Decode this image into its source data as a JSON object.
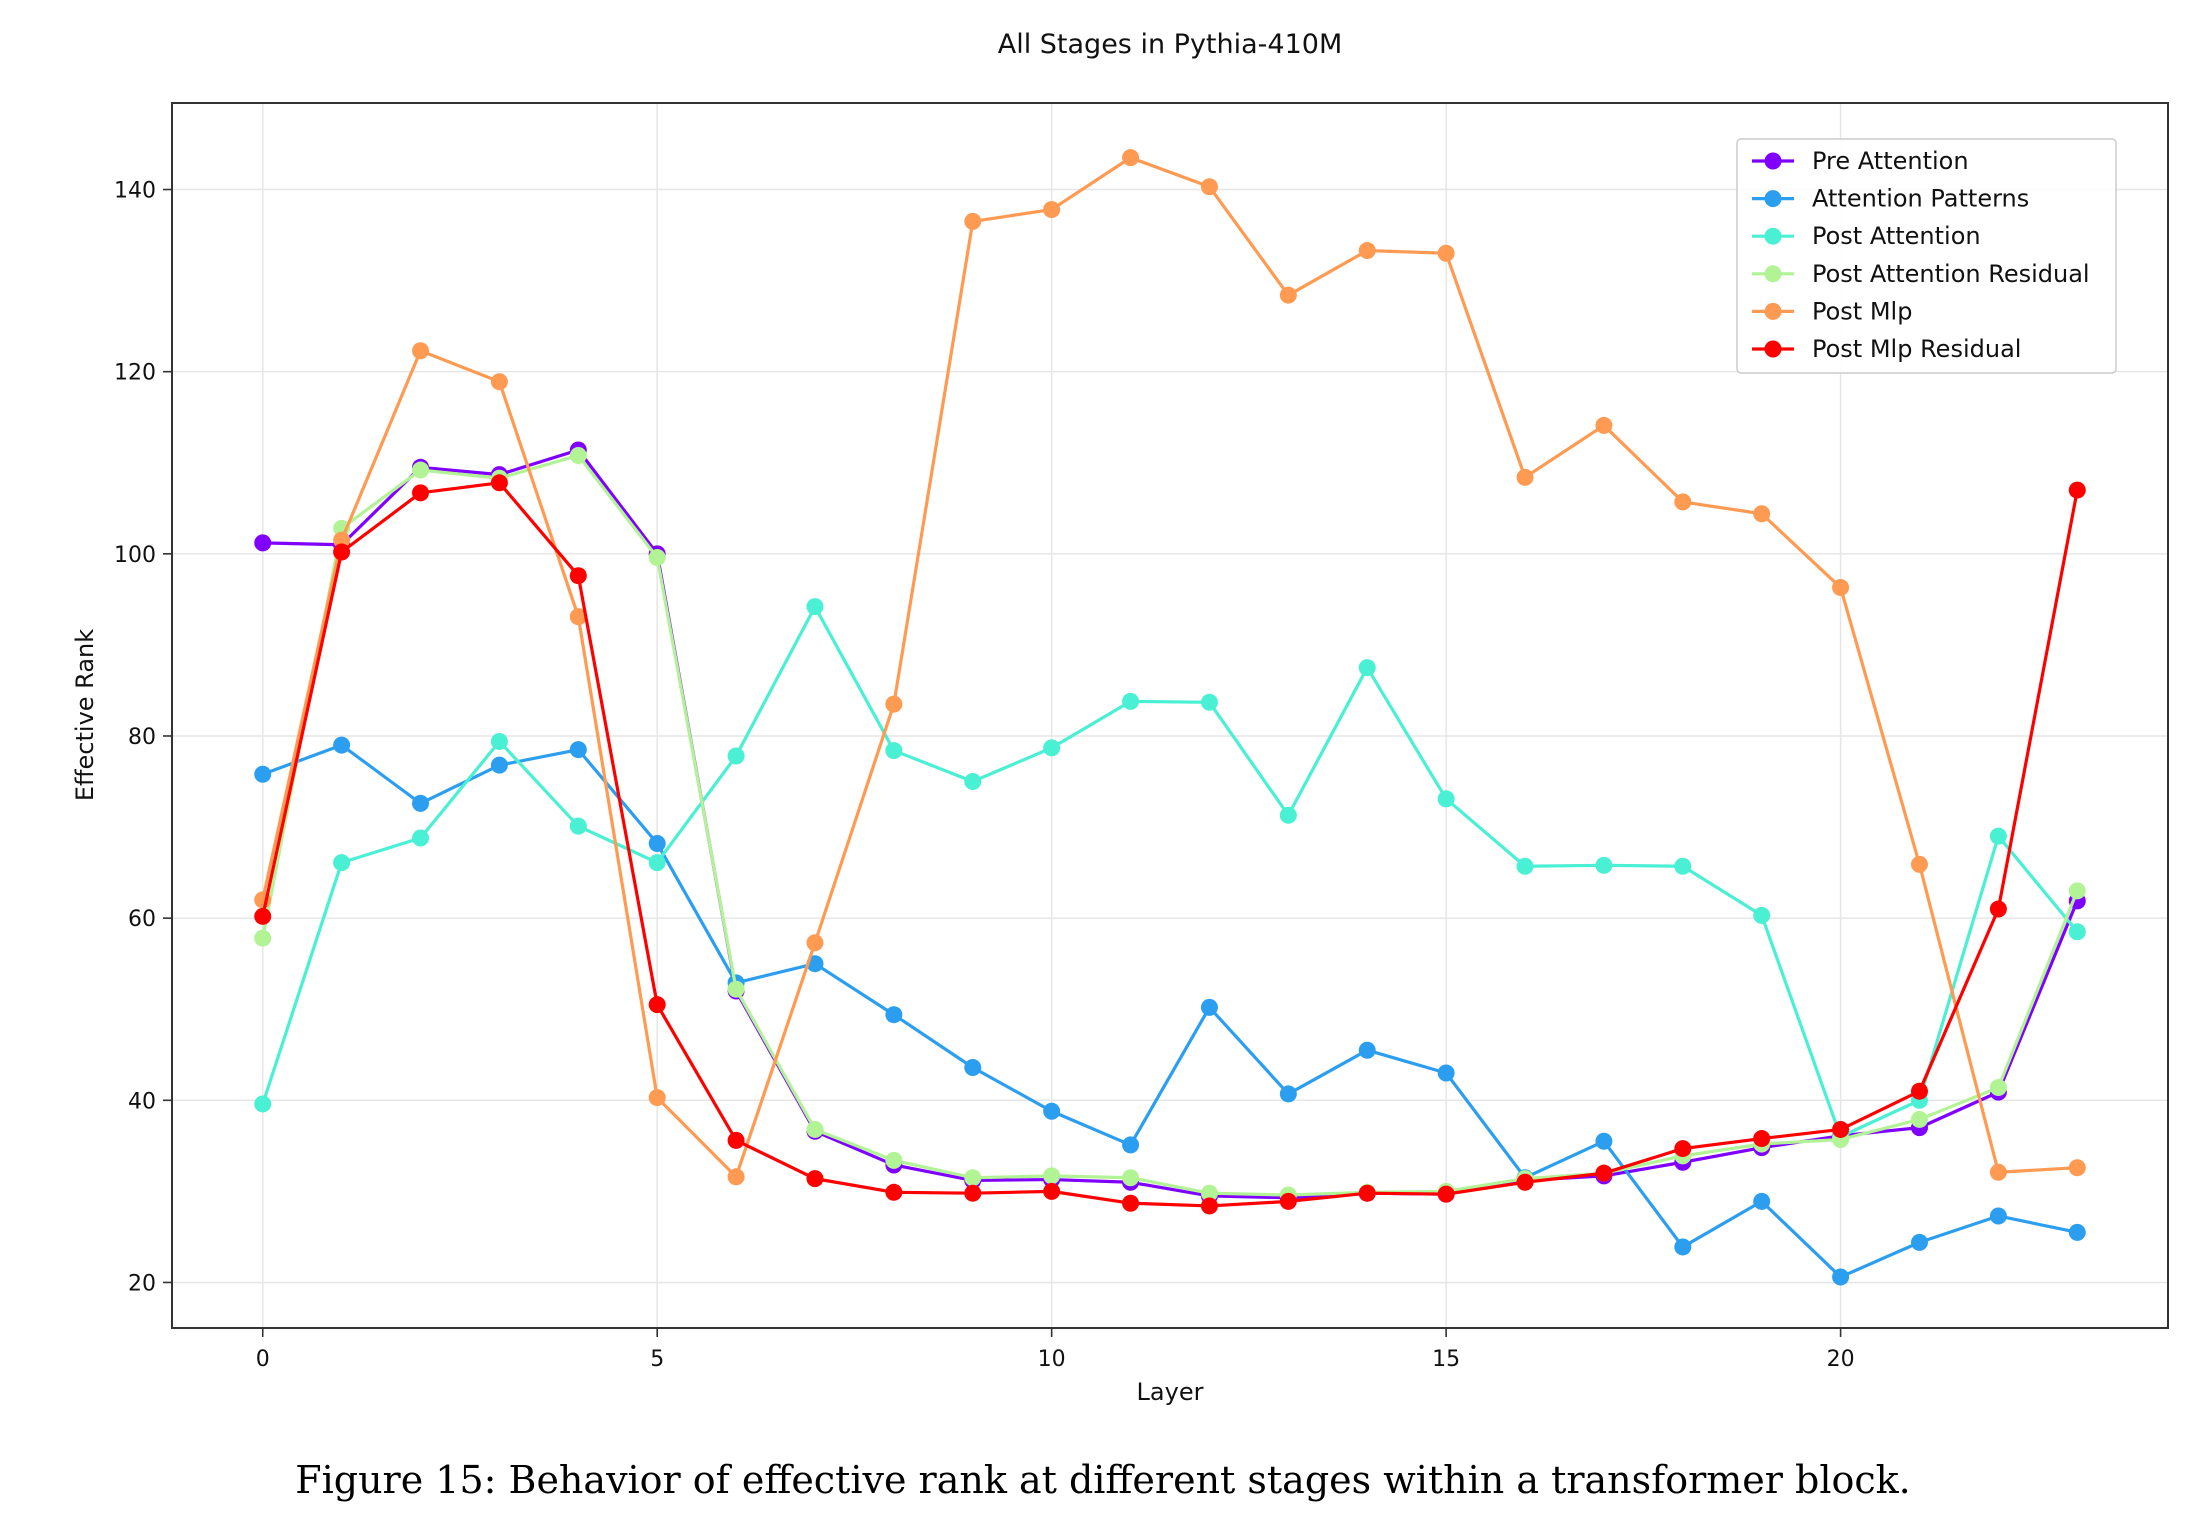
{
  "caption": "Figure 15: Behavior of effective rank at different stages within a transformer block.",
  "chart_data": {
    "type": "line",
    "title": "All Stages in Pythia-410M",
    "xlabel": "Layer",
    "ylabel": "Effective Rank",
    "xlim": [
      -1.15,
      24.15
    ],
    "ylim": [
      15,
      149.5
    ],
    "xticks": [
      0,
      5,
      10,
      15,
      20
    ],
    "yticks": [
      20,
      40,
      60,
      80,
      100,
      120,
      140
    ],
    "grid": true,
    "legend_position": "top-right",
    "x": [
      0,
      1,
      2,
      3,
      4,
      5,
      6,
      7,
      8,
      9,
      10,
      11,
      12,
      13,
      14,
      15,
      16,
      17,
      18,
      19,
      20,
      21,
      22,
      23
    ],
    "series": [
      {
        "name": "Pre Attention",
        "color": "#8000ff",
        "values": [
          101.2,
          101.0,
          109.5,
          108.7,
          111.4,
          100.0,
          52.0,
          36.6,
          32.9,
          31.2,
          31.3,
          31.0,
          29.5,
          29.3,
          29.8,
          29.7,
          31.2,
          31.7,
          33.2,
          34.8,
          36.1,
          37.0,
          40.9,
          61.9
        ]
      },
      {
        "name": "Attention Patterns",
        "color": "#2c9ef0",
        "values": [
          75.8,
          79.0,
          72.6,
          76.8,
          78.5,
          68.2,
          52.9,
          55.0,
          49.4,
          43.6,
          38.8,
          35.1,
          50.2,
          40.7,
          45.5,
          43.0,
          31.5,
          35.5,
          23.9,
          28.9,
          20.6,
          24.4,
          27.3,
          25.5
        ]
      },
      {
        "name": "Post Attention",
        "color": "#4af0d4",
        "values": [
          39.6,
          66.1,
          68.8,
          79.4,
          70.1,
          66.1,
          77.8,
          94.2,
          78.4,
          75.0,
          78.7,
          83.8,
          83.7,
          71.3,
          87.5,
          73.1,
          65.7,
          65.8,
          65.7,
          60.3,
          36.0,
          40.0,
          69.0,
          58.5
        ]
      },
      {
        "name": "Post Attention Residual",
        "color": "#b2f396",
        "values": [
          57.8,
          102.8,
          109.2,
          108.3,
          110.8,
          99.6,
          52.2,
          36.8,
          33.4,
          31.5,
          31.7,
          31.5,
          29.8,
          29.6,
          29.9,
          30.0,
          31.4,
          32.0,
          33.9,
          35.2,
          35.7,
          37.9,
          41.4,
          63.0
        ]
      },
      {
        "name": "Post Mlp",
        "color": "#ff9a52",
        "values": [
          62.0,
          101.5,
          122.3,
          118.9,
          93.1,
          40.3,
          31.6,
          57.3,
          83.5,
          136.5,
          137.8,
          143.5,
          140.3,
          128.4,
          133.3,
          133.0,
          108.4,
          114.1,
          105.7,
          104.4,
          96.3,
          65.9,
          32.1,
          32.6
        ]
      },
      {
        "name": "Post Mlp Residual",
        "color": "#ff0000",
        "values": [
          60.2,
          100.2,
          106.7,
          107.8,
          97.6,
          50.5,
          35.6,
          31.4,
          29.9,
          29.8,
          30.0,
          28.7,
          28.4,
          28.9,
          29.8,
          29.7,
          31.0,
          32.0,
          34.7,
          35.8,
          36.8,
          41.0,
          61.0,
          107.0
        ]
      }
    ]
  }
}
